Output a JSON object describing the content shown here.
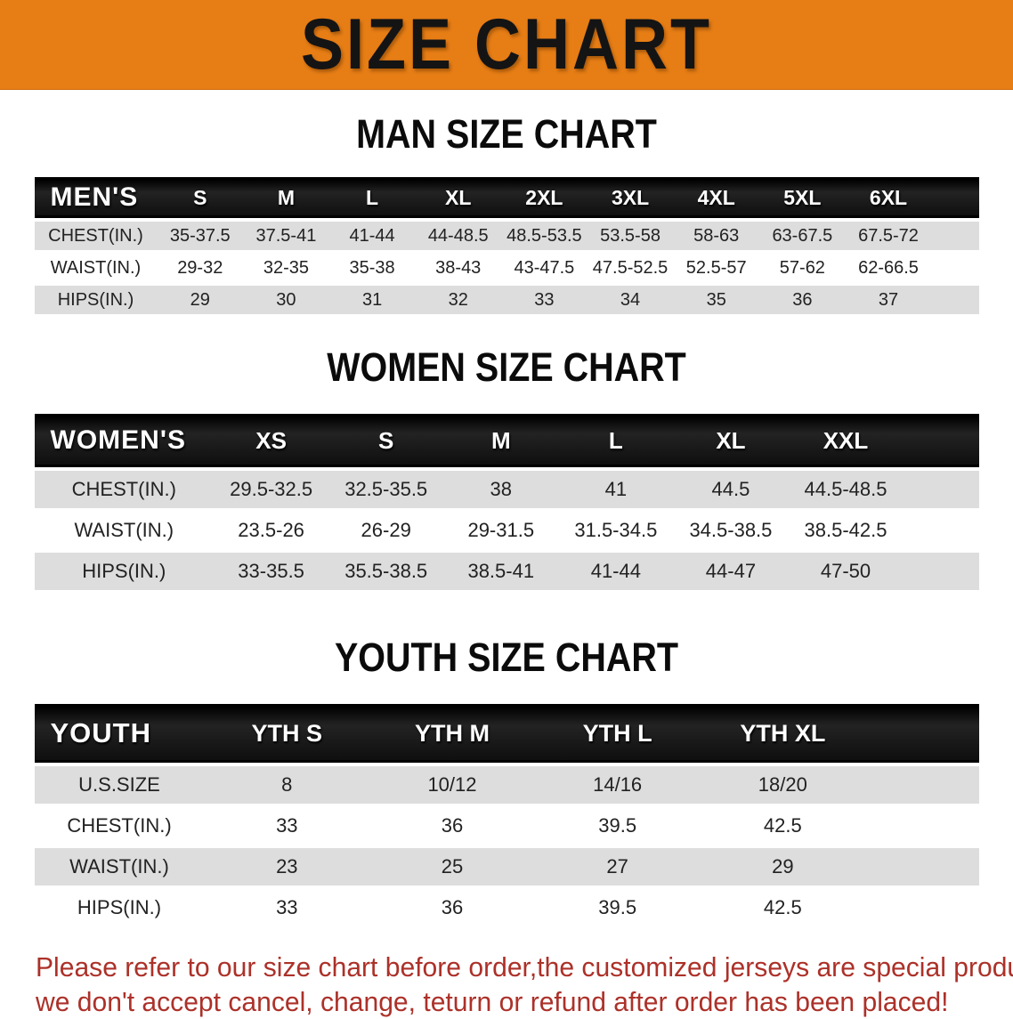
{
  "banner": {
    "title": "SIZE CHART"
  },
  "colors": {
    "banner_bg": "#E67D15",
    "header_bg": "#0F0F0F",
    "shade_row": "#DDDDDD",
    "footer_text": "#AC3129"
  },
  "sections": [
    {
      "heading": "MAN SIZE CHART",
      "table": {
        "header_label": "MEN'S",
        "sizes": [
          "S",
          "M",
          "L",
          "XL",
          "2XL",
          "3XL",
          "4XL",
          "5XL",
          "6XL"
        ],
        "rows": [
          {
            "label": "CHEST(IN.)",
            "shade": true,
            "values": [
              "35-37.5",
              "37.5-41",
              "41-44",
              "44-48.5",
              "48.5-53.5",
              "53.5-58",
              "58-63",
              "63-67.5",
              "67.5-72"
            ]
          },
          {
            "label": "WAIST(IN.)",
            "shade": false,
            "values": [
              "29-32",
              "32-35",
              "35-38",
              "38-43",
              "43-47.5",
              "47.5-52.5",
              "52.5-57",
              "57-62",
              "62-66.5"
            ]
          },
          {
            "label": "HIPS(IN.)",
            "shade": true,
            "values": [
              "29",
              "30",
              "31",
              "32",
              "33",
              "34",
              "35",
              "36",
              "37"
            ]
          }
        ]
      }
    },
    {
      "heading": "WOMEN SIZE CHART",
      "table": {
        "header_label": "WOMEN'S",
        "sizes": [
          "XS",
          "S",
          "M",
          "L",
          "XL",
          "XXL"
        ],
        "rows": [
          {
            "label": "CHEST(IN.)",
            "shade": true,
            "values": [
              "29.5-32.5",
              "32.5-35.5",
              "38",
              "41",
              "44.5",
              "44.5-48.5"
            ]
          },
          {
            "label": "WAIST(IN.)",
            "shade": false,
            "values": [
              "23.5-26",
              "26-29",
              "29-31.5",
              "31.5-34.5",
              "34.5-38.5",
              "38.5-42.5"
            ]
          },
          {
            "label": "HIPS(IN.)",
            "shade": true,
            "values": [
              "33-35.5",
              "35.5-38.5",
              "38.5-41",
              "41-44",
              "44-47",
              "47-50"
            ]
          }
        ]
      }
    },
    {
      "heading": "YOUTH SIZE CHART",
      "table": {
        "header_label": "YOUTH",
        "sizes": [
          "YTH S",
          "YTH M",
          "YTH L",
          "YTH XL"
        ],
        "rows": [
          {
            "label": "U.S.SIZE",
            "shade": true,
            "values": [
              "8",
              "10/12",
              "14/16",
              "18/20"
            ]
          },
          {
            "label": "CHEST(IN.)",
            "shade": false,
            "values": [
              "33",
              "36",
              "39.5",
              "42.5"
            ]
          },
          {
            "label": "WAIST(IN.)",
            "shade": true,
            "values": [
              "23",
              "25",
              "27",
              "29"
            ]
          },
          {
            "label": "HIPS(IN.)",
            "shade": false,
            "values": [
              "33",
              "36",
              "39.5",
              "42.5"
            ]
          }
        ]
      }
    }
  ],
  "footer": {
    "lines": [
      "Please refer to our size chart before order,the customized jerseys are special products,",
      "we don't accept cancel, change, teturn or refund after order has been placed!"
    ]
  }
}
